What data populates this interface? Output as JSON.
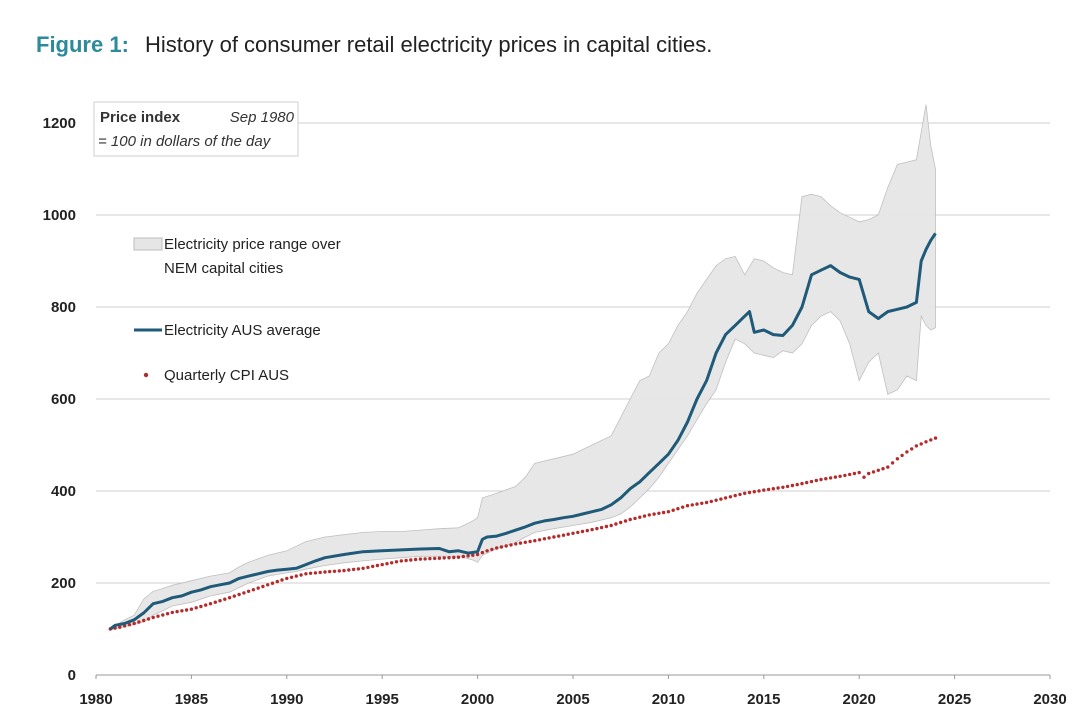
{
  "figure": {
    "number": "Figure 1:",
    "caption": "History of consumer retail electricity prices in capital cities."
  },
  "chart_data": {
    "type": "line",
    "title": "History of consumer retail electricity prices in capital cities.",
    "xlabel": "",
    "ylabel": "",
    "xlim": [
      1980,
      2030
    ],
    "ylim": [
      0,
      1250
    ],
    "x_ticks": [
      "1980",
      "1985",
      "1990",
      "1995",
      "2000",
      "2005",
      "2010",
      "2015",
      "2020",
      "2025",
      "2030"
    ],
    "y_ticks": [
      "0",
      "200",
      "400",
      "600",
      "800",
      "1000",
      "1200"
    ],
    "grid": "horizontal",
    "legend_position": "top-left",
    "note": {
      "bold": "Price index",
      "italic_right": "Sep 1980",
      "italic_line2": "= 100 in dollars of the day"
    },
    "colors": {
      "average": "#1f5a78",
      "cpi": "#b52a2a",
      "range_fill": "#e6e6e6",
      "range_edge": "#bdbdbd",
      "title_accent": "#2c8a9a"
    },
    "series": [
      {
        "name": "Electricity price range over NEM capital cities",
        "legend_lines": [
          "Electricity price range over",
          "NEM capital cities"
        ],
        "kind": "band",
        "x": [
          1980.75,
          1981.5,
          1982,
          1982.5,
          1983,
          1983.5,
          1984,
          1985,
          1986,
          1987,
          1987.5,
          1988,
          1989,
          1990,
          1990.5,
          1991,
          1992,
          1993,
          1994,
          1995,
          1996,
          1997,
          1998,
          1999,
          1999.75,
          2000,
          2000.25,
          2001,
          2002,
          2002.5,
          2003,
          2004,
          2005,
          2006,
          2007,
          2007.5,
          2008,
          2008.5,
          2009,
          2009.5,
          2010,
          2010.5,
          2011,
          2011.5,
          2012,
          2012.5,
          2013,
          2013.5,
          2014,
          2014.5,
          2015,
          2015.5,
          2016,
          2016.5,
          2017,
          2017.5,
          2018,
          2018.5,
          2019,
          2019.5,
          2020,
          2020.5,
          2021,
          2021.5,
          2022,
          2022.5,
          2023,
          2023.25,
          2023.5,
          2023.75,
          2024
        ],
        "low": [
          98,
          105,
          110,
          115,
          130,
          140,
          150,
          158,
          172,
          180,
          190,
          200,
          215,
          222,
          225,
          230,
          238,
          244,
          248,
          252,
          255,
          258,
          258,
          258,
          250,
          245,
          260,
          275,
          288,
          300,
          310,
          318,
          325,
          332,
          342,
          350,
          365,
          385,
          405,
          430,
          460,
          490,
          520,
          555,
          590,
          620,
          680,
          730,
          720,
          700,
          695,
          690,
          705,
          700,
          720,
          760,
          780,
          790,
          770,
          720,
          640,
          680,
          700,
          610,
          620,
          650,
          640,
          780,
          760,
          750,
          755
        ],
        "high": [
          100,
          120,
          130,
          165,
          182,
          188,
          195,
          205,
          215,
          222,
          235,
          245,
          260,
          270,
          280,
          290,
          300,
          305,
          310,
          312,
          312,
          315,
          318,
          320,
          335,
          342,
          385,
          395,
          410,
          430,
          460,
          470,
          480,
          500,
          520,
          560,
          600,
          640,
          650,
          700,
          720,
          760,
          790,
          830,
          860,
          890,
          905,
          910,
          870,
          905,
          900,
          885,
          875,
          870,
          1040,
          1045,
          1040,
          1020,
          1005,
          995,
          985,
          990,
          1000,
          1060,
          1110,
          1115,
          1120,
          1180,
          1240,
          1150,
          1100
        ]
      },
      {
        "name": "Electricity AUS average",
        "kind": "line",
        "x": [
          1980.75,
          1981,
          1981.5,
          1982,
          1982.5,
          1983,
          1983.5,
          1984,
          1984.5,
          1985,
          1985.5,
          1986,
          1986.5,
          1987,
          1987.5,
          1988,
          1988.5,
          1989,
          1989.5,
          1990,
          1990.5,
          1991,
          1991.5,
          1992,
          1993,
          1994,
          1995,
          1996,
          1997,
          1998,
          1998.5,
          1999,
          1999.5,
          2000,
          2000.25,
          2000.5,
          2001,
          2001.5,
          2002,
          2002.5,
          2003,
          2003.5,
          2004,
          2004.5,
          2005,
          2005.5,
          2006,
          2006.5,
          2007,
          2007.5,
          2008,
          2008.5,
          2009,
          2009.5,
          2010,
          2010.5,
          2011,
          2011.5,
          2012,
          2012.5,
          2013,
          2013.5,
          2014,
          2014.25,
          2014.5,
          2015,
          2015.5,
          2016,
          2016.5,
          2017,
          2017.5,
          2018,
          2018.5,
          2019,
          2019.5,
          2020,
          2020.5,
          2021,
          2021.5,
          2022,
          2022.5,
          2023,
          2023.25,
          2023.5,
          2023.75,
          2024
        ],
        "y": [
          100,
          108,
          112,
          120,
          135,
          155,
          160,
          168,
          172,
          180,
          185,
          192,
          196,
          200,
          210,
          215,
          220,
          225,
          228,
          230,
          232,
          240,
          248,
          255,
          262,
          268,
          270,
          272,
          274,
          275,
          268,
          270,
          265,
          268,
          295,
          300,
          302,
          308,
          315,
          322,
          330,
          335,
          338,
          342,
          345,
          350,
          355,
          360,
          370,
          385,
          405,
          420,
          440,
          460,
          480,
          510,
          550,
          600,
          640,
          700,
          740,
          760,
          780,
          790,
          745,
          750,
          740,
          738,
          760,
          800,
          870,
          880,
          890,
          875,
          865,
          860,
          790,
          775,
          790,
          795,
          800,
          810,
          900,
          925,
          945,
          960
        ]
      },
      {
        "name": "Quarterly CPI AUS",
        "kind": "scatter",
        "x": [
          1980.75,
          1981.25,
          1982,
          1983,
          1984,
          1985,
          1986,
          1987,
          1988,
          1989,
          1990,
          1991,
          1992,
          1993,
          1994,
          1995,
          1996,
          1997,
          1998,
          1999,
          2000,
          2000.5,
          2001,
          2002,
          2003,
          2004,
          2005,
          2006,
          2007,
          2008,
          2009,
          2010,
          2011,
          2012,
          2013,
          2014,
          2015,
          2016,
          2017,
          2018,
          2019,
          2020,
          2020.25,
          2020.5,
          2021,
          2021.5,
          2022,
          2022.5,
          2023,
          2023.5,
          2024
        ],
        "y": [
          100,
          104,
          112,
          125,
          136,
          143,
          155,
          168,
          182,
          196,
          210,
          220,
          224,
          227,
          232,
          240,
          248,
          252,
          254,
          256,
          262,
          270,
          276,
          285,
          292,
          300,
          308,
          316,
          325,
          338,
          348,
          355,
          368,
          375,
          385,
          395,
          402,
          408,
          416,
          425,
          432,
          440,
          430,
          438,
          445,
          452,
          470,
          485,
          498,
          507,
          515
        ]
      }
    ]
  }
}
